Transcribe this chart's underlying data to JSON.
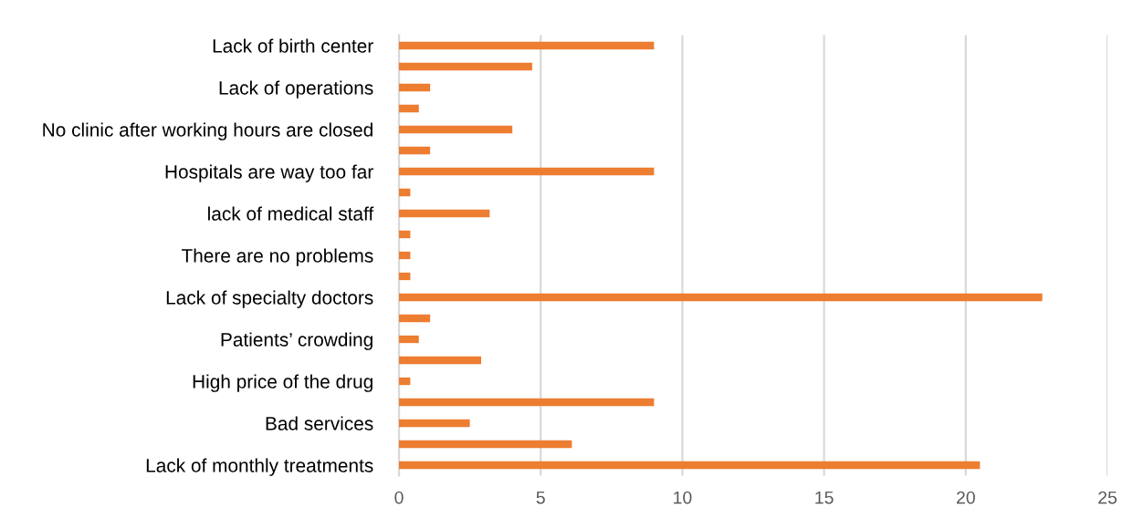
{
  "chart_data": {
    "type": "bar",
    "orientation": "horizontal",
    "categories": [
      "Lack of birth center",
      null,
      "Lack of operations",
      null,
      "No clinic after working hours are closed",
      null,
      "Hospitals are way too far",
      null,
      "lack of medical staff",
      null,
      "There are no problems",
      null,
      "Lack of specialty doctors",
      null,
      "Patients’ crowding",
      null,
      "High price of the drug",
      null,
      "Bad services",
      null,
      "Lack of monthly treatments"
    ],
    "values": [
      9.0,
      4.7,
      1.1,
      0.7,
      4.0,
      1.1,
      9.0,
      0.4,
      3.2,
      0.4,
      0.4,
      0.4,
      22.7,
      1.1,
      0.7,
      2.9,
      0.4,
      9.0,
      2.5,
      6.1,
      20.5
    ],
    "color": "#ed7d31",
    "xlim": [
      0,
      25
    ],
    "xticks": [
      0,
      5,
      10,
      15,
      20,
      25
    ],
    "grid": "x"
  }
}
